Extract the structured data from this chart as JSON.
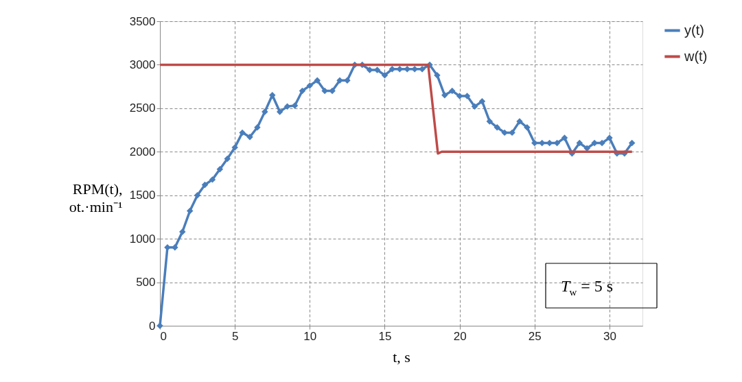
{
  "chart_data": {
    "type": "line",
    "xlabel": "t, s",
    "ylabel": "RPM(t),\not.·min⁻¹",
    "xlim": [
      0,
      32.2
    ],
    "xticks": [
      0,
      5,
      10,
      15,
      20,
      25,
      30
    ],
    "ylim": [
      0,
      3500
    ],
    "yticks": [
      0,
      500,
      1000,
      1500,
      2000,
      2500,
      3000,
      3500
    ],
    "grid": true,
    "legend": "right",
    "annotations": [
      "T$_{w}$ = 5 s"
    ],
    "series": [
      {
        "name": "y(t)",
        "color": "#4a7ebb",
        "marker": "diamond",
        "x": [
          0,
          0.5,
          1,
          1.5,
          2,
          2.5,
          3,
          3.5,
          4,
          4.5,
          5,
          5.5,
          6,
          6.5,
          7,
          7.5,
          8,
          8.5,
          9,
          9.5,
          10,
          10.5,
          11,
          11.5,
          12,
          12.5,
          13,
          13.5,
          14,
          14.5,
          15,
          15.5,
          16,
          16.5,
          17,
          17.5,
          18,
          18.5,
          19,
          19.5,
          20,
          20.5,
          21,
          21.5,
          22,
          22.5,
          23,
          23.5,
          24,
          24.5,
          25,
          25.5,
          26,
          26.5,
          27,
          27.5,
          28,
          28.5,
          29,
          29.5,
          30,
          30.5,
          31,
          31.5
        ],
        "values": [
          0,
          900,
          900,
          1080,
          1320,
          1500,
          1620,
          1680,
          1800,
          1920,
          2050,
          2220,
          2170,
          2280,
          2460,
          2650,
          2460,
          2520,
          2530,
          2700,
          2760,
          2820,
          2700,
          2700,
          2820,
          2820,
          3000,
          3000,
          2940,
          2940,
          2880,
          2950,
          2950,
          2950,
          2950,
          2950,
          3000,
          2880,
          2650,
          2700,
          2640,
          2640,
          2520,
          2580,
          2350,
          2280,
          2220,
          2220,
          2350,
          2280,
          2100,
          2100,
          2100,
          2100,
          2160,
          1980,
          2100,
          2040,
          2100,
          2100,
          2160,
          1980,
          1980,
          2100
        ]
      },
      {
        "name": "w(t)",
        "color": "#be4b48",
        "marker": "none",
        "x": [
          0,
          17.9,
          18.55,
          18.8,
          31.5
        ],
        "values": [
          3000,
          3000,
          1980,
          2000,
          2000
        ]
      }
    ]
  }
}
